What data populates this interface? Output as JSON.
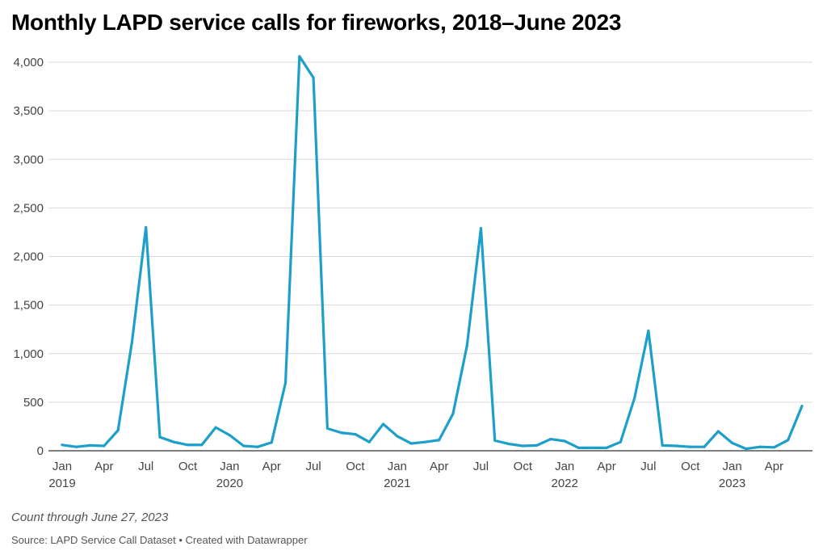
{
  "title": "Monthly LAPD service calls for fireworks, 2018–June 2023",
  "note": "Count through June 27, 2023",
  "source": "Source: LAPD Service Call Dataset • Created with Datawrapper",
  "chart_data": {
    "type": "line",
    "line_color": "#1d9fcb",
    "grid": true,
    "ylim": [
      0,
      4000
    ],
    "y_ticks": [
      0,
      500,
      1000,
      1500,
      2000,
      2500,
      3000,
      3500,
      4000
    ],
    "y_tick_labels": [
      "0",
      "500",
      "1,000",
      "1,500",
      "2,000",
      "2,500",
      "3,000",
      "3,500",
      "4,000"
    ],
    "x_ticks": [
      {
        "x": "2019-01",
        "label": "Jan",
        "year": "2019"
      },
      {
        "x": "2019-04",
        "label": "Apr",
        "year": ""
      },
      {
        "x": "2019-07",
        "label": "Jul",
        "year": ""
      },
      {
        "x": "2019-10",
        "label": "Oct",
        "year": ""
      },
      {
        "x": "2020-01",
        "label": "Jan",
        "year": "2020"
      },
      {
        "x": "2020-04",
        "label": "Apr",
        "year": ""
      },
      {
        "x": "2020-07",
        "label": "Jul",
        "year": ""
      },
      {
        "x": "2020-10",
        "label": "Oct",
        "year": ""
      },
      {
        "x": "2021-01",
        "label": "Jan",
        "year": "2021"
      },
      {
        "x": "2021-04",
        "label": "Apr",
        "year": ""
      },
      {
        "x": "2021-07",
        "label": "Jul",
        "year": ""
      },
      {
        "x": "2021-10",
        "label": "Oct",
        "year": ""
      },
      {
        "x": "2022-01",
        "label": "Jan",
        "year": "2022"
      },
      {
        "x": "2022-04",
        "label": "Apr",
        "year": ""
      },
      {
        "x": "2022-07",
        "label": "Jul",
        "year": ""
      },
      {
        "x": "2022-10",
        "label": "Oct",
        "year": ""
      },
      {
        "x": "2023-01",
        "label": "Jan",
        "year": "2023"
      },
      {
        "x": "2023-04",
        "label": "Apr",
        "year": ""
      }
    ],
    "x": [
      "2019-01",
      "2019-02",
      "2019-03",
      "2019-04",
      "2019-05",
      "2019-06",
      "2019-07",
      "2019-08",
      "2019-09",
      "2019-10",
      "2019-11",
      "2019-12",
      "2020-01",
      "2020-02",
      "2020-03",
      "2020-04",
      "2020-05",
      "2020-06",
      "2020-07",
      "2020-08",
      "2020-09",
      "2020-10",
      "2020-11",
      "2020-12",
      "2021-01",
      "2021-02",
      "2021-03",
      "2021-04",
      "2021-05",
      "2021-06",
      "2021-07",
      "2021-08",
      "2021-09",
      "2021-10",
      "2021-11",
      "2021-12",
      "2022-01",
      "2022-02",
      "2022-03",
      "2022-04",
      "2022-05",
      "2022-06",
      "2022-07",
      "2022-08",
      "2022-09",
      "2022-10",
      "2022-11",
      "2022-12",
      "2023-01",
      "2023-02",
      "2023-03",
      "2023-04",
      "2023-05",
      "2023-06"
    ],
    "values": [
      60,
      40,
      55,
      50,
      210,
      1120,
      2300,
      140,
      90,
      60,
      60,
      240,
      160,
      50,
      40,
      85,
      700,
      4060,
      3840,
      230,
      185,
      170,
      90,
      275,
      150,
      75,
      90,
      110,
      380,
      1080,
      2290,
      105,
      70,
      50,
      55,
      120,
      100,
      30,
      30,
      30,
      90,
      540,
      1235,
      55,
      50,
      40,
      40,
      200,
      80,
      20,
      40,
      35,
      110,
      460
    ]
  }
}
